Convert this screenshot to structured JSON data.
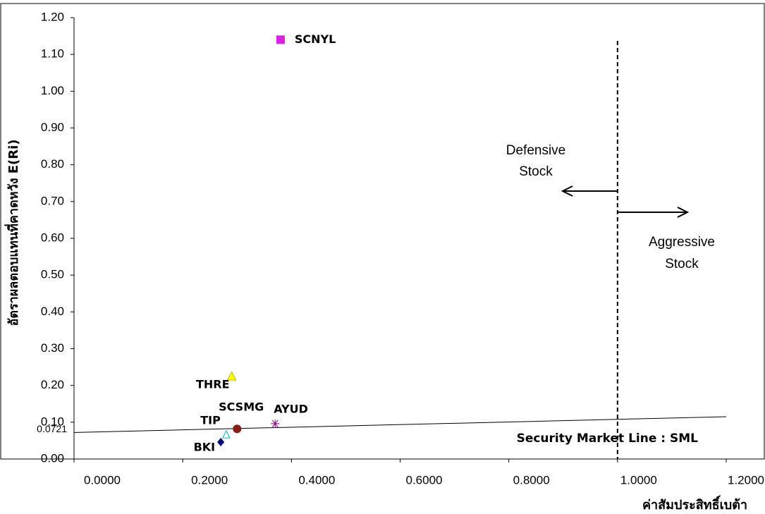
{
  "chart_data": {
    "type": "scatter",
    "x_label": "ค่าสัมประสิทธิ์เบต้า",
    "y_label": "อัตราผลตอบแทนที่คาดหวัง E(Ri)",
    "xlim": [
      0,
      1.2
    ],
    "ylim": [
      0,
      1.2
    ],
    "xticks": [
      {
        "value": 0,
        "label": "0.0000"
      },
      {
        "value": 0.2,
        "label": "0.2000"
      },
      {
        "value": 0.4,
        "label": "0.4000"
      },
      {
        "value": 0.6,
        "label": "0.6000"
      },
      {
        "value": 0.8,
        "label": "0.8000"
      },
      {
        "value": 1.0,
        "label": "1.0000"
      },
      {
        "value": 1.2,
        "label": "1.2000"
      }
    ],
    "yticks": [
      {
        "value": 0,
        "label": "0.00"
      },
      {
        "value": 0.1,
        "label": "0.10"
      },
      {
        "value": 0.2,
        "label": "0.20"
      },
      {
        "value": 0.3,
        "label": "0.30"
      },
      {
        "value": 0.4,
        "label": "0.40"
      },
      {
        "value": 0.5,
        "label": "0.50"
      },
      {
        "value": 0.6,
        "label": "0.60"
      },
      {
        "value": 0.7,
        "label": "0.70"
      },
      {
        "value": 0.8,
        "label": "0.80"
      },
      {
        "value": 0.9,
        "label": "0.90"
      },
      {
        "value": 1.0,
        "label": "1.00"
      },
      {
        "value": 1.1,
        "label": "1.10"
      },
      {
        "value": 1.2,
        "label": "1.20"
      }
    ],
    "series": [
      {
        "name": "SCNYL",
        "color": "#e020e0",
        "marker": "square",
        "x": [
          0.38
        ],
        "values": [
          1.14
        ]
      },
      {
        "name": "THRE",
        "color": "#ffff00",
        "marker": "triangle",
        "x": [
          0.29
        ],
        "values": [
          0.224
        ]
      },
      {
        "name": "SCSMG",
        "color": "#8b1a1a",
        "marker": "circle",
        "x": [
          0.3
        ],
        "values": [
          0.082
        ]
      },
      {
        "name": "AYUD",
        "color": "#800080",
        "marker": "star",
        "x": [
          0.37
        ],
        "values": [
          0.096
        ]
      },
      {
        "name": "TIP",
        "color": "#00c0c0",
        "marker": "open-triangle",
        "x": [
          0.28
        ],
        "values": [
          0.065
        ]
      },
      {
        "name": "BKI",
        "color": "#000080",
        "marker": "diamond",
        "x": [
          0.27
        ],
        "values": [
          0.046
        ]
      }
    ],
    "sml": {
      "name": "Security Market Line : SML",
      "x": [
        0,
        1.2
      ],
      "values": [
        0.0721,
        0.115
      ]
    },
    "divider_x": 1.0,
    "annotations": {
      "defensive": [
        "Defensive",
        "Stock"
      ],
      "aggressive": [
        "Aggressive",
        "Stock"
      ]
    }
  }
}
